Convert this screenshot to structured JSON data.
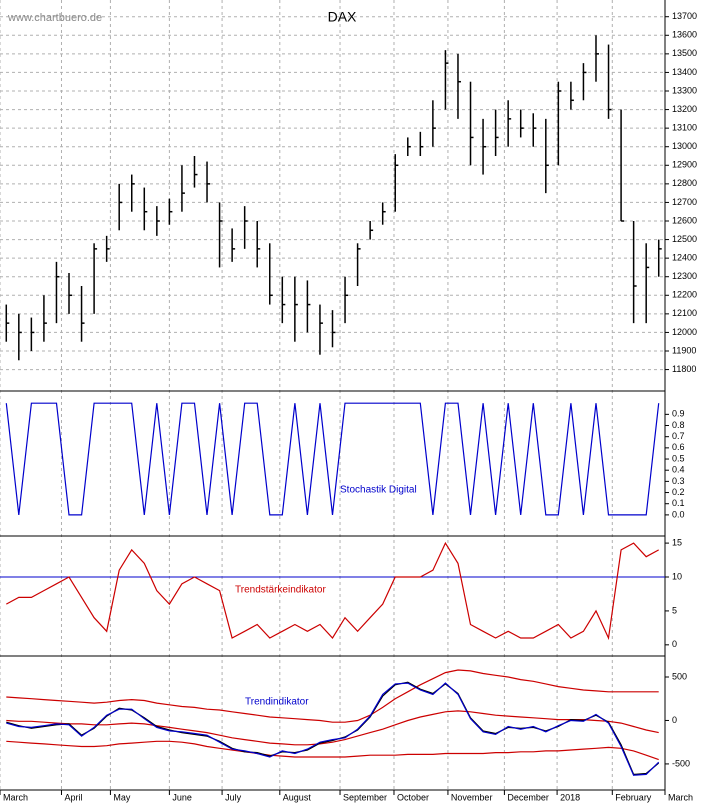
{
  "chart_data": [
    {
      "type": "ohlc",
      "title": "DAX",
      "watermark": "www.chartbuero.de",
      "color": "#000000",
      "grid": true,
      "xlim": [
        -0.5,
        52.5
      ],
      "ylim": [
        11690,
        13790
      ],
      "yticks": [
        11800,
        11900,
        12000,
        12100,
        12200,
        12300,
        12400,
        12500,
        12600,
        12700,
        12800,
        12900,
        13000,
        13100,
        13200,
        13300,
        13400,
        13500,
        13600,
        13700
      ],
      "high": [
        12150,
        12100,
        12080,
        12200,
        12380,
        12320,
        12250,
        12480,
        12520,
        12800,
        12850,
        12780,
        12680,
        12720,
        12900,
        12950,
        12920,
        12700,
        12560,
        12680,
        12600,
        12480,
        12300,
        12300,
        12280,
        12150,
        12120,
        12300,
        12480,
        12600,
        12700,
        12960,
        13050,
        13080,
        13250,
        13520,
        13500,
        13350,
        13150,
        13200,
        13250,
        13200,
        13180,
        13150,
        13350,
        13350,
        13450,
        13600,
        13550,
        13200,
        12600,
        12480,
        12500
      ],
      "low": [
        11950,
        11850,
        11900,
        11950,
        12050,
        12100,
        11950,
        12100,
        12380,
        12550,
        12650,
        12550,
        12520,
        12580,
        12650,
        12780,
        12700,
        12350,
        12380,
        12450,
        12350,
        12150,
        12050,
        11950,
        12000,
        11880,
        11920,
        12050,
        12250,
        12500,
        12580,
        12650,
        12950,
        12950,
        13000,
        13200,
        13150,
        12900,
        12850,
        12950,
        13000,
        13050,
        13000,
        12750,
        12900,
        13200,
        13250,
        13350,
        13150,
        12600,
        12050,
        12050,
        12300
      ],
      "close": [
        12050,
        12000,
        12000,
        12050,
        12300,
        12200,
        12050,
        12450,
        12450,
        12700,
        12800,
        12650,
        12600,
        12650,
        12750,
        12850,
        12800,
        12600,
        12450,
        12600,
        12450,
        12200,
        12150,
        12150,
        12150,
        12050,
        12000,
        12200,
        12450,
        12550,
        12650,
        12900,
        13000,
        13000,
        13100,
        13450,
        13350,
        13050,
        13000,
        13050,
        13150,
        13100,
        13100,
        12900,
        13300,
        13250,
        13400,
        13500,
        13200,
        12600,
        12250,
        12350,
        12450
      ]
    },
    {
      "type": "line",
      "label": "Stochastik Digital",
      "grid": false,
      "xlim": [
        -0.5,
        52.5
      ],
      "ylim": [
        -0.18,
        1.1
      ],
      "yticks": [
        {
          "value": 0,
          "label": "0.0"
        },
        0.1,
        0.2,
        0.3,
        0.4,
        0.5,
        0.6,
        0.7,
        0.8,
        0.9
      ],
      "series": [
        {
          "color": "#0000cc",
          "values": [
            1,
            0,
            1,
            1,
            1,
            0,
            0,
            1,
            1,
            1,
            1,
            0,
            1,
            0,
            1,
            1,
            0,
            1,
            0,
            1,
            1,
            0,
            0,
            1,
            0,
            1,
            0,
            1,
            1,
            1,
            1,
            1,
            1,
            1,
            0,
            1,
            1,
            0,
            1,
            0,
            1,
            0,
            1,
            0,
            0,
            1,
            0,
            1,
            0,
            0,
            0,
            0,
            1
          ]
        }
      ]
    },
    {
      "type": "line",
      "label": "Trendstärkeindikator",
      "grid": false,
      "xlim": [
        -0.5,
        52.5
      ],
      "ylim": [
        -1.5,
        15.9
      ],
      "yticks": [
        0,
        5,
        10,
        15
      ],
      "hline": {
        "value": 10,
        "color": "#0000cc"
      },
      "series": [
        {
          "color": "#cc0000",
          "values": [
            6,
            7,
            7,
            8,
            9,
            10,
            7,
            4,
            2,
            11,
            14,
            12,
            8,
            6,
            9,
            10,
            9,
            8,
            1,
            2,
            3,
            1,
            2,
            3,
            2,
            3,
            1,
            4,
            2,
            4,
            6,
            10,
            10,
            10,
            11,
            15,
            12,
            3,
            2,
            1,
            2,
            1,
            1,
            2,
            3,
            1,
            2,
            5,
            1,
            14,
            15,
            13,
            14
          ]
        }
      ]
    },
    {
      "type": "line",
      "label": "Trendindikator",
      "grid": false,
      "xlim": [
        -0.5,
        52.5
      ],
      "ylim": [
        -800,
        730
      ],
      "yticks": [
        -500,
        0,
        500
      ],
      "xticks": [
        {
          "value": -0.5,
          "label": "March"
        },
        {
          "value": 4.4,
          "label": "April"
        },
        {
          "value": 8.3,
          "label": "May"
        },
        {
          "value": 13.0,
          "label": "June"
        },
        {
          "value": 17.2,
          "label": "July"
        },
        {
          "value": 21.8,
          "label": "August"
        },
        {
          "value": 26.6,
          "label": "September"
        },
        {
          "value": 30.9,
          "label": "October"
        },
        {
          "value": 35.2,
          "label": "November"
        },
        {
          "value": 39.7,
          "label": "December"
        },
        {
          "value": 43.9,
          "label": "2018"
        },
        {
          "value": 48.3,
          "label": "February"
        },
        {
          "value": 52.5,
          "label": "March"
        }
      ],
      "series": [
        {
          "color": "#cc0000",
          "values": [
            270,
            260,
            250,
            240,
            230,
            220,
            210,
            200,
            210,
            230,
            240,
            230,
            200,
            180,
            160,
            150,
            130,
            120,
            100,
            80,
            60,
            40,
            30,
            20,
            10,
            0,
            -20,
            -20,
            0,
            60,
            150,
            250,
            330,
            410,
            480,
            550,
            580,
            570,
            540,
            520,
            500,
            470,
            450,
            420,
            390,
            370,
            350,
            340,
            330,
            330,
            330,
            330,
            330
          ]
        },
        {
          "color": "#cc0000",
          "values": [
            0,
            -10,
            -10,
            -20,
            -30,
            -40,
            -40,
            -50,
            -50,
            -40,
            -30,
            -40,
            -60,
            -80,
            -100,
            -120,
            -140,
            -170,
            -200,
            -220,
            -240,
            -260,
            -270,
            -280,
            -280,
            -270,
            -250,
            -220,
            -180,
            -140,
            -100,
            -50,
            0,
            40,
            70,
            100,
            110,
            100,
            80,
            60,
            50,
            40,
            30,
            20,
            10,
            10,
            10,
            0,
            -10,
            -30,
            -70,
            -110,
            -140
          ]
        },
        {
          "color": "#cc0000",
          "values": [
            -240,
            -250,
            -260,
            -270,
            -280,
            -290,
            -300,
            -300,
            -290,
            -270,
            -260,
            -250,
            -240,
            -240,
            -250,
            -270,
            -300,
            -320,
            -340,
            -360,
            -380,
            -400,
            -410,
            -420,
            -420,
            -420,
            -420,
            -420,
            -410,
            -400,
            -400,
            -400,
            -390,
            -390,
            -390,
            -380,
            -380,
            -380,
            -380,
            -370,
            -370,
            -360,
            -360,
            -350,
            -350,
            -340,
            -330,
            -320,
            -310,
            -320,
            -350,
            -400,
            -450
          ]
        },
        {
          "color": "#000000",
          "values": [
            -20,
            -60,
            -90,
            -70,
            -50,
            -40,
            -170,
            -90,
            50,
            140,
            120,
            30,
            -70,
            -110,
            -140,
            -160,
            -180,
            -240,
            -320,
            -360,
            -370,
            -410,
            -360,
            -370,
            -340,
            -260,
            -230,
            -190,
            -110,
            40,
            280,
            410,
            440,
            360,
            310,
            420,
            310,
            30,
            -120,
            -150,
            -80,
            -90,
            -80,
            -120,
            -70,
            10,
            0,
            60,
            -20,
            -280,
            -620,
            -610,
            -490
          ]
        },
        {
          "color": "#0000cc",
          "values": [
            -30,
            -70,
            -80,
            -60,
            -40,
            -50,
            -180,
            -80,
            60,
            130,
            130,
            20,
            -80,
            -120,
            -130,
            -150,
            -170,
            -250,
            -330,
            -350,
            -380,
            -420,
            -350,
            -380,
            -330,
            -250,
            -220,
            -200,
            -100,
            50,
            300,
            420,
            430,
            350,
            300,
            430,
            300,
            20,
            -130,
            -160,
            -70,
            -100,
            -70,
            -130,
            -60,
            0,
            -10,
            70,
            -30,
            -300,
            -630,
            -620,
            -480
          ]
        }
      ]
    }
  ]
}
